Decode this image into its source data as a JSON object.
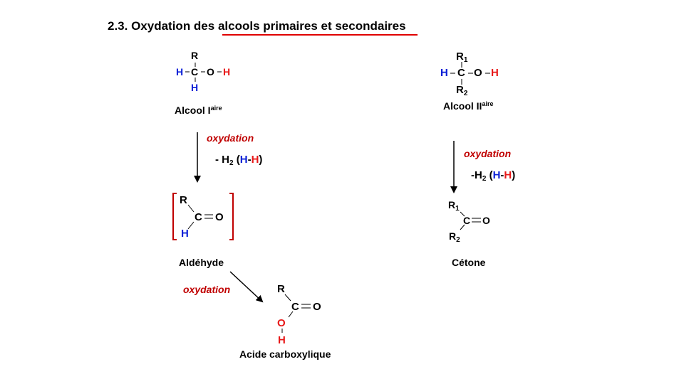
{
  "title": "2.3. Oxydation des alcools primaires et secondaires",
  "colors": {
    "hydrogen_blue": "#0a1fd6",
    "hydrogen_oxygen_red": "#e81818",
    "annotation": "#c00000",
    "underline": "#e00000"
  },
  "left": {
    "alcool1": {
      "R": "R",
      "H_left": "H",
      "C": "C",
      "O": "O",
      "H_right": "H",
      "H_bottom": "H",
      "label": "Alcool I",
      "label_sup": "aire"
    },
    "step1": {
      "oxydation": "oxydation",
      "minus": "- H",
      "two": "2",
      "paren_open": "(",
      "H1": "H",
      "dash": "-",
      "H2": "H",
      "paren_close": ")"
    },
    "aldehyde": {
      "R": "R",
      "C": "C",
      "O": "O",
      "H": "H",
      "label": "Aldéhyde"
    },
    "step2": {
      "oxydation": "oxydation"
    },
    "acid": {
      "R": "R",
      "C": "C",
      "O_double": "O",
      "O": "O",
      "H": "H",
      "label": "Acide carboxylique"
    }
  },
  "right": {
    "alcool2": {
      "R1": "R",
      "R1_sub": "1",
      "H_left": "H",
      "C": "C",
      "O": "O",
      "H_right": "H",
      "R2": "R",
      "R2_sub": "2",
      "label": "Alcool II",
      "label_sup": "aire"
    },
    "step": {
      "oxydation": "oxydation",
      "minus": "-H",
      "two": "2",
      "paren_open": "(",
      "H1": "H",
      "dash": "-",
      "H2": "H",
      "paren_close": ")"
    },
    "cetone": {
      "R1": "R",
      "R1_sub": "1",
      "C": "C",
      "O": "O",
      "R2": "R",
      "R2_sub": "2",
      "label": "Cétone"
    }
  }
}
